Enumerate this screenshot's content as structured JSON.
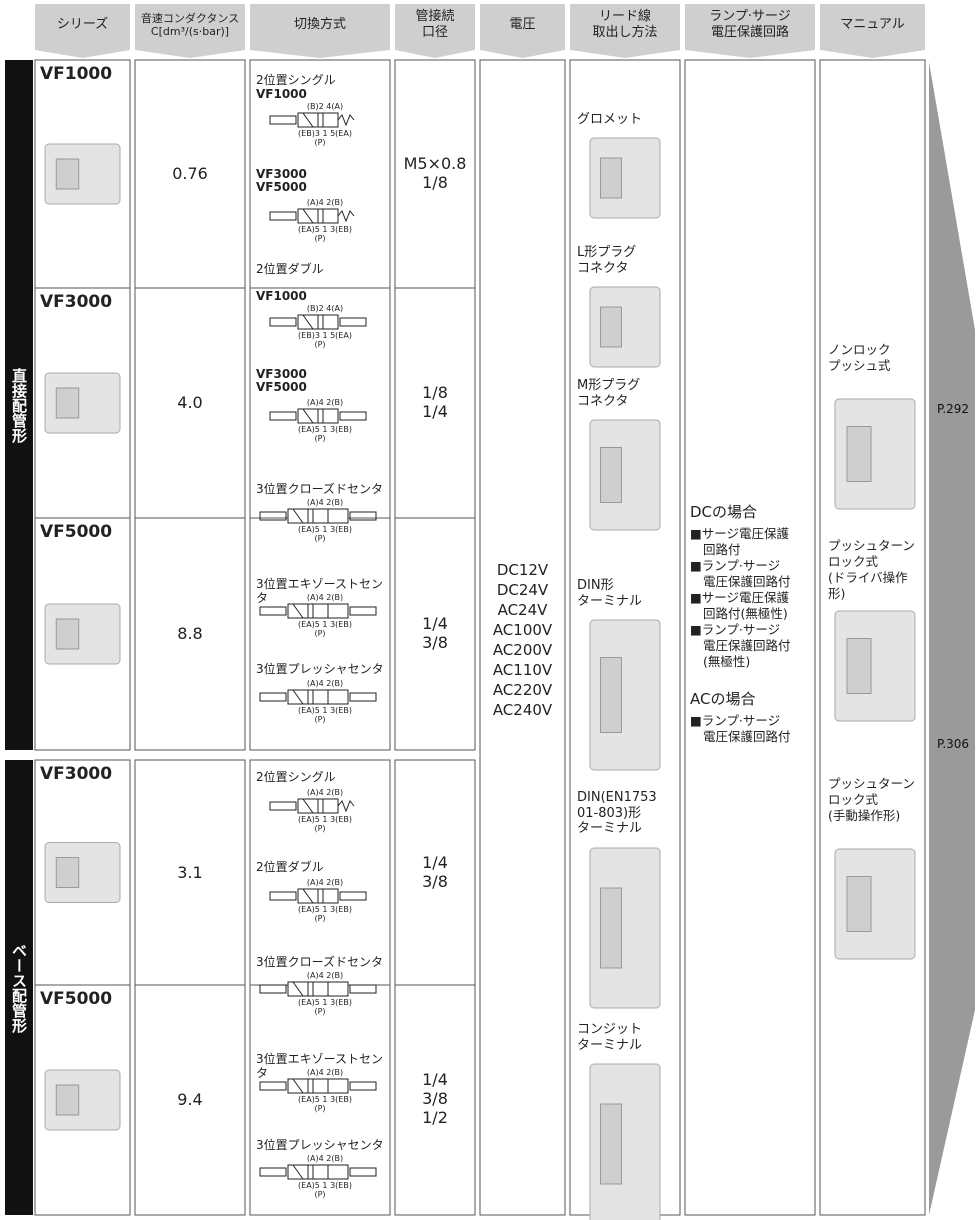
{
  "header": [
    "シリーズ",
    "音速コンダクタンス\nC[dm³/(s·bar)]",
    "切換方式",
    "管接続\n口径",
    "電圧",
    "リード線\n取出し方法",
    "ランプ·サージ\n電圧保護回路",
    "マニュアル"
  ],
  "groups": [
    {
      "label": "直接配管形",
      "rows": [
        {
          "series": "VF1000",
          "conductance": "0.76",
          "port": "M5×0.8\n1/8"
        },
        {
          "series": "VF3000",
          "conductance": "4.0",
          "port": "1/8\n1/4"
        },
        {
          "series": "VF5000",
          "conductance": "8.8",
          "port": "1/4\n3/8"
        }
      ]
    },
    {
      "label": "ベース配管形",
      "rows": [
        {
          "series": "VF3000",
          "conductance": "3.1",
          "port": "1/4\n3/8"
        },
        {
          "series": "VF5000",
          "conductance": "9.4",
          "port": "1/4\n3/8\n1/2"
        }
      ]
    }
  ],
  "switching": [
    {
      "text": "2位置シングル"
    },
    {
      "series": "VF1000"
    },
    {
      "symbol": {
        "top": "(B)2  4(A)",
        "bottom": "(EB)3 1 5(EA)",
        "p": "(P)"
      }
    },
    {
      "series": "VF3000\nVF5000"
    },
    {
      "symbol": {
        "top": "(A)4  2(B)",
        "bottom": "(EA)5 1 3(EB)",
        "p": "(P)"
      }
    },
    {
      "text": "2位置ダブル"
    },
    {
      "series": "VF1000"
    },
    {
      "symbol": {
        "top": "(B)2  4(A)",
        "bottom": "(EB)3 1 5(EA)",
        "p": "(P)"
      }
    },
    {
      "series": "VF3000\nVF5000"
    },
    {
      "symbol": {
        "top": "(A)4  2(B)",
        "bottom": "(EA)5 1 3(EB)",
        "p": "(P)"
      }
    },
    {
      "text": "3位置クローズドセンタ"
    },
    {
      "symbol": {
        "top": "(A)4  2(B)",
        "bottom": "(EA)5 1 3(EB)",
        "p": "(P)"
      }
    },
    {
      "text": "3位置エキゾーストセンタ"
    },
    {
      "symbol": {
        "top": "(A)4  2(B)",
        "bottom": "(EA)5 1 3(EB)",
        "p": "(P)"
      }
    },
    {
      "text": "3位置プレッシャセンタ"
    },
    {
      "symbol": {
        "top": "(A)4  2(B)",
        "bottom": "(EA)5 1 3(EB)",
        "p": "(P)"
      }
    },
    {
      "text": "2位置シングル"
    },
    {
      "symbol": {
        "top": "(A)4  2(B)",
        "bottom": "(EA)5 1 3(EB)",
        "p": "(P)"
      }
    },
    {
      "text": "2位置ダブル"
    },
    {
      "symbol": {
        "top": "(A)4  2(B)",
        "bottom": "(EA)5 1 3(EB)",
        "p": "(P)"
      }
    },
    {
      "text": "3位置クローズドセンタ"
    },
    {
      "symbol": {
        "top": "(A)4  2(B)",
        "bottom": "(EA)5 1 3(EB)",
        "p": "(P)"
      }
    },
    {
      "text": "3位置エキゾーストセンタ"
    },
    {
      "symbol": {
        "top": "(A)4  2(B)",
        "bottom": "(EA)5 1 3(EB)",
        "p": "(P)"
      }
    },
    {
      "text": "3位置プレッシャセンタ"
    },
    {
      "symbol": {
        "top": "(A)4  2(B)",
        "bottom": "(EA)5 1 3(EB)",
        "p": "(P)"
      }
    }
  ],
  "voltage": "DC12V\nDC24V\nAC24V\nAC100V\nAC200V\nAC110V\nAC220V\nAC240V",
  "lead": [
    "グロメット",
    "L形プラグ\nコネクタ",
    "M形プラグ\nコネクタ",
    "DIN形\nターミナル",
    "DIN(EN1753\n01-803)形\nターミナル",
    "コンジット\nターミナル"
  ],
  "protection": {
    "dc_title": "DCの場合",
    "dc_items": [
      "■サージ電圧保護\n回路付",
      "■ランプ·サージ\n電圧保護回路付",
      "■サージ電圧保護\n回路付(無極性)",
      "■ランプ·サージ\n電圧保護回路付\n(無極性)"
    ],
    "ac_title": "ACの場合",
    "ac_items": [
      "■ランプ·サージ\n電圧保護回路付"
    ]
  },
  "manual": [
    "ノンロック\nプッシュ式",
    "プッシュターン\nロック式\n(ドライバ操作形)",
    "プッシュターン\nロック式\n(手動操作形)"
  ],
  "pages": [
    "P.292",
    "P.306"
  ]
}
